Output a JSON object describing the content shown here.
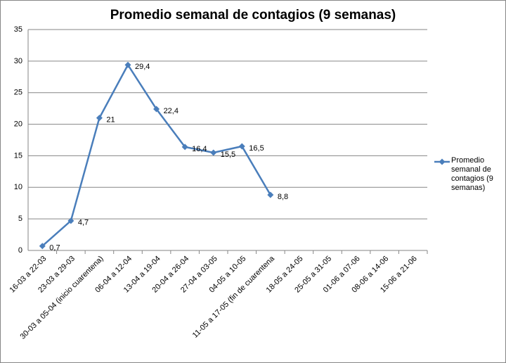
{
  "chart_data": {
    "type": "line",
    "title": "Promedio semanal de contagios (9 semanas)",
    "categories": [
      "16-03 a 22-03",
      "23-03 a 29-03",
      "30-03 a 05-04 (inicio cuarentena)",
      "06-04 a 12-04",
      "13-04 a 19-04",
      "20-04 a 26-04",
      "27-04 a 03-05",
      "04-05 a 10-05",
      "11-05 a 17-05 (fin de cuarentena",
      "18-05 a 24-05",
      "25-05 a 31-05",
      "01-06 a 07-06",
      "08-06 a 14-06",
      "15-06 a 21-06"
    ],
    "series": [
      {
        "name": "Promedio semanal de contagios (9 semanas)",
        "color": "#4a7ebb",
        "values": [
          0.7,
          4.7,
          21,
          29.4,
          22.4,
          16.4,
          15.5,
          16.5,
          8.8,
          null,
          null,
          null,
          null,
          null
        ],
        "value_labels": [
          "0,7",
          "4,7",
          "21",
          "29,4",
          "22,4",
          "16,4",
          "15,5",
          "16,5",
          "8,8",
          null,
          null,
          null,
          null,
          null
        ]
      }
    ],
    "ylim": [
      0,
      35
    ],
    "yticks": [
      0,
      5,
      10,
      15,
      20,
      25,
      30,
      35
    ],
    "grid": true,
    "legend": "right"
  }
}
